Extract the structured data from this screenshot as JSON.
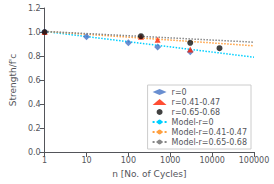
{
  "chart_data": {
    "type": "scatter",
    "title": "",
    "xlabel": "n [No. of Cycles]",
    "ylabel": "Strength/f'c",
    "log": "x",
    "grid": false,
    "legend": "lower right",
    "xlim": [
      1,
      100000
    ],
    "xticks": [
      1,
      10,
      100,
      1000,
      10000,
      100000
    ],
    "ylim": [
      0,
      1.2
    ],
    "yticks": [
      {
        "value": 0,
        "label": "0.0"
      },
      0.2,
      0.4,
      0.6,
      0.8,
      {
        "value": 1.0,
        "label": "1.0"
      },
      1.2
    ],
    "series": [
      {
        "name": "r=0",
        "type": "scatter",
        "marker": "diamond",
        "color": "#4472C4",
        "x": [
          1,
          10,
          100,
          500,
          3000
        ],
        "values": [
          1.0,
          0.96,
          0.91,
          0.875,
          0.835
        ]
      },
      {
        "name": "r=0.41-0.47",
        "type": "scatter",
        "marker": "triangle",
        "color": "#FF2000",
        "x": [
          1,
          200,
          500,
          3000
        ],
        "values": [
          1.0,
          0.96,
          0.935,
          0.855
        ]
      },
      {
        "name": "r=0.65-0.68",
        "type": "scatter",
        "marker": "circle",
        "color": "#111111",
        "x": [
          1,
          200,
          3000,
          15000
        ],
        "values": [
          1.0,
          0.965,
          0.91,
          0.865
        ]
      },
      {
        "name": "Model-r=0",
        "type": "line",
        "line_style": "dotted",
        "color": "#00CFFF",
        "x": [
          1,
          100000
        ],
        "values": [
          1.005,
          0.79
        ]
      },
      {
        "name": "Model-r=0.41-0.47",
        "type": "line",
        "line_style": "dotted",
        "color": "#FFA040",
        "x": [
          1,
          100000
        ],
        "values": [
          1.005,
          0.885
        ]
      },
      {
        "name": "Model-r=0.65-0.68",
        "type": "line",
        "line_style": "dotted",
        "color": "#888888",
        "x": [
          1,
          100000
        ],
        "values": [
          1.005,
          0.915
        ]
      }
    ]
  }
}
